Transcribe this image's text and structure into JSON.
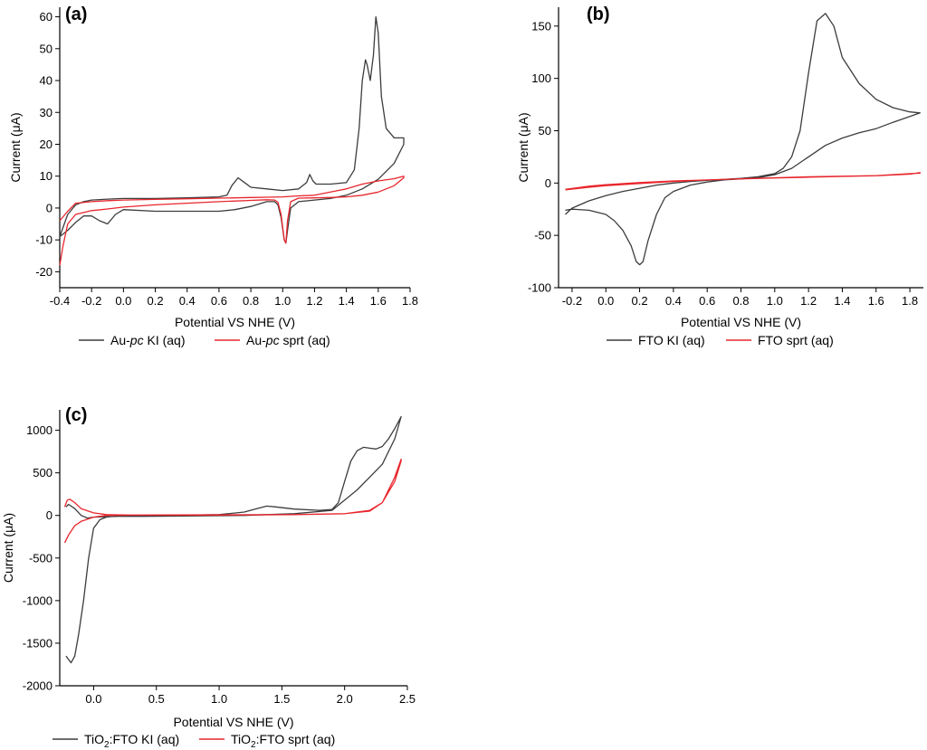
{
  "chart_data": [
    {
      "type": "line",
      "panel_label": "(a)",
      "xlabel": "Potential VS NHE (V)",
      "ylabel": "Current (μA)",
      "xlim": [
        -0.4,
        1.8
      ],
      "ylim": [
        -25,
        63
      ],
      "xticks": [
        -0.4,
        -0.2,
        0.0,
        0.2,
        0.4,
        0.6,
        0.8,
        1.0,
        1.2,
        1.4,
        1.6,
        1.8
      ],
      "xtick_labels": [
        "-0.4",
        "-0.2",
        "0.0",
        "0.2",
        "0.4",
        "0.6",
        "0.8",
        "1.0",
        "1.2",
        "1.4",
        "1.6",
        "1.8"
      ],
      "yticks": [
        -20,
        -10,
        0,
        10,
        20,
        30,
        40,
        50,
        60
      ],
      "ytick_labels": [
        "-20",
        "-10",
        "0",
        "10",
        "20",
        "30",
        "40",
        "50",
        "60"
      ],
      "legend": [
        {
          "pre": "Au-",
          "italic": "pc",
          "post": " KI (aq)"
        },
        {
          "pre": "Au-",
          "italic": "pc",
          "post": " sprt (aq)"
        }
      ],
      "series": [
        {
          "name": "Au-pc KI (aq)",
          "color": "#3c3c3c",
          "x": [
            -0.4,
            -0.35,
            -0.3,
            -0.25,
            -0.2,
            -0.1,
            0.0,
            0.2,
            0.4,
            0.6,
            0.65,
            0.68,
            0.72,
            0.76,
            0.8,
            0.9,
            1.0,
            1.1,
            1.15,
            1.17,
            1.19,
            1.21,
            1.3,
            1.4,
            1.45,
            1.48,
            1.5,
            1.52,
            1.53,
            1.55,
            1.57,
            1.585,
            1.6,
            1.62,
            1.65,
            1.7,
            1.76,
            1.76,
            1.7,
            1.6,
            1.5,
            1.4,
            1.3,
            1.2,
            1.1,
            1.05,
            1.03,
            1.02,
            1.01,
            0.99,
            0.97,
            0.95,
            0.9,
            0.8,
            0.7,
            0.6,
            0.4,
            0.2,
            0.0,
            -0.05,
            -0.1,
            -0.15,
            -0.2,
            -0.25,
            -0.3,
            -0.35,
            -0.4
          ],
          "y": [
            -9,
            -2,
            1,
            2,
            2.5,
            2.8,
            3,
            3,
            3.2,
            3.5,
            4,
            7,
            9.5,
            8,
            6.5,
            6,
            5.5,
            6,
            8,
            10.5,
            8.5,
            7.5,
            7.5,
            8,
            12,
            25,
            40,
            46.5,
            45,
            40,
            48,
            60,
            55,
            35,
            25,
            22,
            22,
            20,
            14,
            9,
            6,
            4,
            3,
            2.5,
            2,
            0,
            -7,
            -11,
            -10,
            -3,
            1,
            2,
            2,
            0.5,
            -0.5,
            -1,
            -1,
            -1,
            -0.5,
            -2,
            -5,
            -4,
            -2.5,
            -2.5,
            -4.5,
            -7,
            -9
          ]
        },
        {
          "name": "Au-pc sprt (aq)",
          "color": "#e8262d",
          "x": [
            -0.4,
            -0.35,
            -0.3,
            -0.2,
            -0.1,
            0.0,
            0.2,
            0.4,
            0.6,
            0.7,
            0.8,
            0.9,
            1.0,
            1.1,
            1.2,
            1.3,
            1.4,
            1.5,
            1.6,
            1.7,
            1.76,
            1.76,
            1.7,
            1.6,
            1.5,
            1.4,
            1.3,
            1.2,
            1.1,
            1.05,
            1.03,
            1.02,
            1.01,
            0.99,
            0.97,
            0.95,
            0.9,
            0.8,
            0.6,
            0.4,
            0.2,
            0.0,
            -0.1,
            -0.2,
            -0.3,
            -0.35,
            -0.38,
            -0.4
          ],
          "y": [
            -4,
            -1,
            1.5,
            2,
            2.3,
            2.5,
            2.7,
            2.9,
            3.1,
            3.2,
            3.3,
            3.4,
            3.5,
            3.8,
            4,
            5,
            6,
            7.5,
            8.5,
            9.2,
            10,
            9.5,
            7,
            5,
            4,
            3.5,
            3.3,
            3.2,
            3.1,
            2,
            -4,
            -11,
            -10,
            -2,
            1.8,
            2.5,
            2.6,
            2.4,
            2,
            1.5,
            1,
            0.3,
            -0.3,
            -0.8,
            -2,
            -5,
            -12,
            -18
          ]
        }
      ]
    },
    {
      "type": "line",
      "panel_label": "(b)",
      "xlabel": "Potential VS NHE (V)",
      "ylabel": "Current (μA)",
      "xlim": [
        -0.28,
        1.88
      ],
      "ylim": [
        -100,
        168
      ],
      "xticks": [
        -0.2,
        0.0,
        0.2,
        0.4,
        0.6,
        0.8,
        1.0,
        1.2,
        1.4,
        1.6,
        1.8
      ],
      "xtick_labels": [
        "-0.2",
        "0.0",
        "0.2",
        "0.4",
        "0.6",
        "0.8",
        "1.0",
        "1.2",
        "1.4",
        "1.6",
        "1.8"
      ],
      "yticks": [
        -100,
        -50,
        0,
        50,
        100,
        150
      ],
      "ytick_labels": [
        "-100",
        "-50",
        "0",
        "50",
        "100",
        "150"
      ],
      "legend": [
        {
          "pre": "FTO KI (aq)",
          "italic": "",
          "post": ""
        },
        {
          "pre": "FTO sprt (aq)",
          "italic": "",
          "post": ""
        }
      ],
      "series": [
        {
          "name": "FTO KI (aq)",
          "color": "#3c3c3c",
          "x": [
            -0.24,
            -0.2,
            -0.1,
            0.0,
            0.1,
            0.2,
            0.3,
            0.4,
            0.5,
            0.6,
            0.7,
            0.8,
            0.9,
            1.0,
            1.05,
            1.1,
            1.15,
            1.2,
            1.25,
            1.3,
            1.35,
            1.4,
            1.5,
            1.6,
            1.7,
            1.8,
            1.86,
            1.86,
            1.7,
            1.6,
            1.5,
            1.4,
            1.3,
            1.2,
            1.1,
            1.0,
            0.9,
            0.8,
            0.7,
            0.6,
            0.5,
            0.45,
            0.4,
            0.35,
            0.3,
            0.25,
            0.22,
            0.2,
            0.18,
            0.15,
            0.1,
            0.05,
            0.0,
            -0.1,
            -0.2,
            -0.24
          ],
          "y": [
            -30,
            -24,
            -17,
            -12,
            -8,
            -5,
            -2,
            0,
            1.5,
            2.5,
            3.5,
            4.5,
            6,
            9,
            14,
            25,
            50,
            105,
            155,
            162,
            150,
            120,
            95,
            80,
            72,
            68,
            67,
            67,
            58,
            52,
            48,
            43,
            36,
            25,
            14,
            8,
            5,
            4,
            3,
            1,
            -2,
            -5,
            -8,
            -14,
            -30,
            -55,
            -75,
            -78,
            -75,
            -60,
            -45,
            -36,
            -30,
            -26,
            -25,
            -26
          ]
        },
        {
          "name": "FTO sprt (aq)",
          "color": "#e8262d",
          "x": [
            -0.24,
            -0.1,
            0.0,
            0.2,
            0.4,
            0.6,
            0.8,
            1.0,
            1.2,
            1.4,
            1.6,
            1.8,
            1.86,
            1.86,
            1.6,
            1.4,
            1.2,
            1.0,
            0.8,
            0.6,
            0.4,
            0.2,
            0.0,
            -0.1,
            -0.24
          ],
          "y": [
            -6,
            -3,
            -1.5,
            0.5,
            2,
            3,
            4,
            5,
            6,
            6.5,
            7,
            8.5,
            10,
            9.5,
            7,
            6.3,
            5.6,
            4.9,
            4,
            3,
            1.5,
            -0.5,
            -2.5,
            -4,
            -6.5
          ]
        }
      ]
    },
    {
      "type": "line",
      "panel_label": "(c)",
      "xlabel": "Potential VS NHE (V)",
      "ylabel": "Current (μA)",
      "xlim": [
        -0.27,
        2.5
      ],
      "ylim": [
        -2000,
        1240
      ],
      "xticks": [
        0.0,
        0.5,
        1.0,
        1.5,
        2.0,
        2.5
      ],
      "xtick_labels": [
        "0.0",
        "0.5",
        "1.0",
        "1.5",
        "2.0",
        "2.5"
      ],
      "yticks": [
        -2000,
        -1500,
        -1000,
        -500,
        0,
        500,
        1000
      ],
      "ytick_labels": [
        "-2000",
        "-1500",
        "-1000",
        "-500",
        "0",
        "500",
        "1000"
      ],
      "legend": [
        {
          "pre": "TiO",
          "sub": "2",
          "post": ":FTO KI (aq)"
        },
        {
          "pre": "TiO",
          "sub": "2",
          "post": ":FTO sprt (aq)"
        }
      ],
      "series": [
        {
          "name": "TiO2:FTO KI (aq)",
          "color": "#3c3c3c",
          "x": [
            -0.22,
            -0.18,
            -0.15,
            -0.12,
            -0.08,
            -0.04,
            0.0,
            0.05,
            0.1,
            0.2,
            0.4,
            0.8,
            1.0,
            1.2,
            1.3,
            1.38,
            1.45,
            1.6,
            1.8,
            1.9,
            1.95,
            2.0,
            2.05,
            2.1,
            2.15,
            2.2,
            2.25,
            2.3,
            2.35,
            2.4,
            2.45,
            2.45,
            2.4,
            2.3,
            2.2,
            2.1,
            2.0,
            1.9,
            1.6,
            1.2,
            0.8,
            0.4,
            0.2,
            0.1,
            0.0,
            -0.05,
            -0.1,
            -0.15,
            -0.2,
            -0.22
          ],
          "y": [
            -1650,
            -1730,
            -1650,
            -1400,
            -1000,
            -500,
            -150,
            -50,
            -20,
            -5,
            0,
            5,
            10,
            40,
            80,
            110,
            100,
            75,
            60,
            70,
            150,
            400,
            640,
            760,
            800,
            790,
            780,
            810,
            900,
            1020,
            1160,
            1160,
            900,
            600,
            450,
            300,
            180,
            60,
            20,
            0,
            -5,
            -10,
            -10,
            -15,
            -20,
            -30,
            0,
            80,
            130,
            100
          ]
        },
        {
          "name": "TiO2:FTO sprt (aq)",
          "color": "#e8262d",
          "x": [
            -0.23,
            -0.2,
            -0.15,
            -0.1,
            0.0,
            0.1,
            0.3,
            1.0,
            1.6,
            2.0,
            2.2,
            2.3,
            2.35,
            2.4,
            2.45,
            2.45,
            2.4,
            2.3,
            2.2,
            2.0,
            1.6,
            1.0,
            0.3,
            0.1,
            0.0,
            -0.1,
            -0.15,
            -0.19,
            -0.21,
            -0.23
          ],
          "y": [
            -320,
            -230,
            -120,
            -70,
            -20,
            0,
            5,
            8,
            10,
            20,
            50,
            150,
            300,
            450,
            660,
            640,
            400,
            150,
            60,
            20,
            10,
            5,
            5,
            10,
            30,
            80,
            150,
            190,
            180,
            100
          ]
        }
      ]
    }
  ]
}
